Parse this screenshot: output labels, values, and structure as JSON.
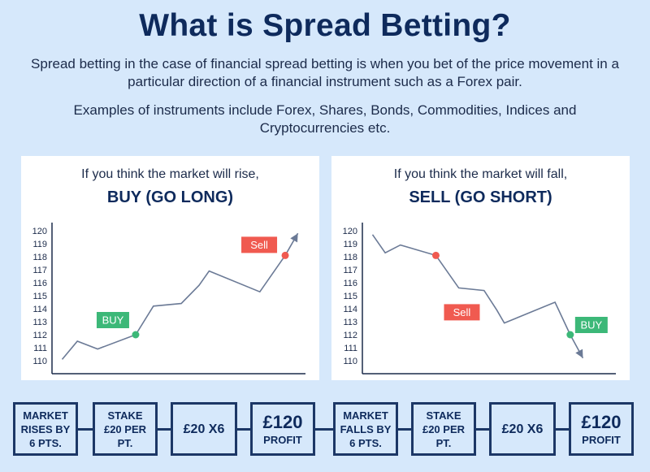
{
  "title": "What is Spread Betting?",
  "paragraphs": {
    "p1": "Spread betting in the case of financial spread betting is when you bet of the price movement in a particular direction of a financial instrument such as a Forex pair.",
    "p2": "Examples of instruments include Forex, Shares, Bonds, Commodities, Indices and Cryptocurrencies etc."
  },
  "panels": {
    "left": {
      "lead": "If you think the market will rise,",
      "head": "BUY (GO LONG)"
    },
    "right": {
      "lead": "If you think the market will fall,",
      "head": "SELL (GO SHORT)"
    }
  },
  "colors": {
    "buy": "#3cb878",
    "sell": "#f05a50",
    "line": "#6b7a96",
    "dark": "#0e2a5c"
  },
  "chart_data": [
    {
      "type": "line",
      "y_ticks": [
        120,
        119,
        118,
        117,
        116,
        115,
        114,
        113,
        112,
        111,
        110
      ],
      "ylim": [
        109,
        121
      ],
      "xlim": [
        0,
        10
      ],
      "grid": false,
      "series": [
        {
          "values": [
            {
              "x": 0.4,
              "y": 110.1
            },
            {
              "x": 1.0,
              "y": 111.5
            },
            {
              "x": 1.8,
              "y": 110.9
            },
            {
              "x": 3.3,
              "y": 112.0
            },
            {
              "x": 4.0,
              "y": 114.2
            },
            {
              "x": 5.1,
              "y": 114.4
            },
            {
              "x": 5.8,
              "y": 115.8
            },
            {
              "x": 6.2,
              "y": 116.9
            },
            {
              "x": 8.2,
              "y": 115.3
            },
            {
              "x": 9.2,
              "y": 118.1
            },
            {
              "x": 9.7,
              "y": 119.8
            }
          ]
        }
      ],
      "markers": [
        {
          "label": "BUY",
          "x": 3.3,
          "y": 112.0,
          "kind": "buy"
        },
        {
          "label": "Sell",
          "x": 9.2,
          "y": 118.1,
          "kind": "sell"
        }
      ]
    },
    {
      "type": "line",
      "y_ticks": [
        120,
        119,
        118,
        117,
        116,
        115,
        114,
        113,
        112,
        111,
        110
      ],
      "ylim": [
        109,
        121
      ],
      "xlim": [
        0,
        10
      ],
      "grid": false,
      "series": [
        {
          "values": [
            {
              "x": 0.4,
              "y": 119.7
            },
            {
              "x": 0.9,
              "y": 118.3
            },
            {
              "x": 1.5,
              "y": 118.9
            },
            {
              "x": 2.9,
              "y": 118.1
            },
            {
              "x": 3.8,
              "y": 115.6
            },
            {
              "x": 4.8,
              "y": 115.4
            },
            {
              "x": 5.3,
              "y": 113.9
            },
            {
              "x": 5.6,
              "y": 112.9
            },
            {
              "x": 7.6,
              "y": 114.5
            },
            {
              "x": 8.2,
              "y": 112.0
            },
            {
              "x": 8.7,
              "y": 110.2
            }
          ]
        }
      ],
      "markers": [
        {
          "label": "Sell",
          "x": 2.9,
          "y": 118.1,
          "kind": "sell"
        },
        {
          "label": "BUY",
          "x": 8.2,
          "y": 112.0,
          "kind": "buy"
        }
      ]
    }
  ],
  "flow": {
    "left": [
      {
        "lines": [
          "MARKET",
          "RISES BY",
          "6 PTS."
        ]
      },
      {
        "lines": [
          "STAKE",
          "£20 PER",
          "PT."
        ]
      },
      {
        "main": "£20 X6"
      },
      {
        "big": "£120",
        "sub": "PROFIT"
      }
    ],
    "right": [
      {
        "lines": [
          "MARKET",
          "FALLS BY",
          "6 PTS."
        ]
      },
      {
        "lines": [
          "STAKE",
          "£20 PER",
          "PT."
        ]
      },
      {
        "main": "£20 X6"
      },
      {
        "big": "£120",
        "sub": "PROFIT"
      }
    ]
  }
}
